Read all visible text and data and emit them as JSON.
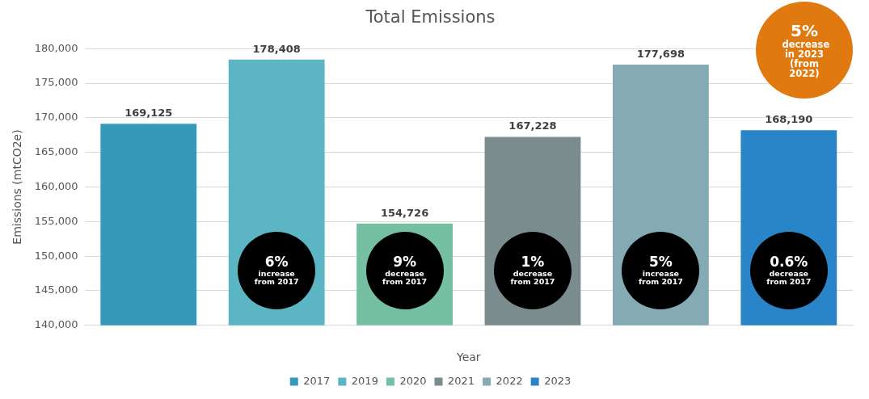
{
  "chart_data": {
    "type": "bar",
    "title": "Total Emissions",
    "xlabel": "Year",
    "ylabel": "Emissions (mtCO2e)",
    "categories": [
      null,
      null,
      null,
      null,
      null,
      null
    ],
    "series": [
      {
        "name": "2017",
        "color": "#3698bb",
        "values": [
          169125,
          null,
          null,
          null,
          null,
          null
        ],
        "value_labels": [
          "169,125",
          null,
          null,
          null,
          null,
          null
        ]
      },
      {
        "name": "2019",
        "color": "#5bb5c2",
        "values": [
          null,
          178408,
          null,
          null,
          null,
          null
        ],
        "value_labels": [
          null,
          "178,408",
          null,
          null,
          null,
          null
        ]
      },
      {
        "name": "2020",
        "color": "#75bfa3",
        "values": [
          null,
          null,
          154726,
          null,
          null,
          null
        ],
        "value_labels": [
          null,
          null,
          "154,726",
          null,
          null,
          null
        ]
      },
      {
        "name": "2021",
        "color": "#7a8c8e",
        "values": [
          null,
          null,
          null,
          167228,
          null,
          null
        ],
        "value_labels": [
          null,
          null,
          null,
          "167,228",
          null,
          null
        ]
      },
      {
        "name": "2022",
        "color": "#84aab4",
        "values": [
          null,
          null,
          null,
          null,
          177698,
          null
        ],
        "value_labels": [
          null,
          null,
          null,
          null,
          "177,698",
          null
        ]
      },
      {
        "name": "2023",
        "color": "#2a85c8",
        "values": [
          null,
          null,
          null,
          null,
          null,
          168190
        ],
        "value_labels": [
          null,
          null,
          null,
          null,
          null,
          "168,190"
        ]
      }
    ],
    "ylim": [
      140000,
      180000
    ],
    "yticks": [
      {
        "value": 140000,
        "label": "140,000"
      },
      {
        "value": 145000,
        "label": "145,000"
      },
      {
        "value": 150000,
        "label": "150,000"
      },
      {
        "value": 155000,
        "label": "155,000"
      },
      {
        "value": 160000,
        "label": "160,000"
      },
      {
        "value": 165000,
        "label": "165,000"
      },
      {
        "value": 170000,
        "label": "170,000"
      },
      {
        "value": 175000,
        "label": "175,000"
      },
      {
        "value": 180000,
        "label": "180,000"
      }
    ],
    "grid": "y",
    "legend": "bottom",
    "annotations": [
      "6% increase from 2017",
      "9% decrease from 2017",
      "1% decrease from 2017",
      "5% increase from 2017",
      "0.6% decrease from 2017",
      "5% decrease in 2023 (from 2022)"
    ]
  }
}
